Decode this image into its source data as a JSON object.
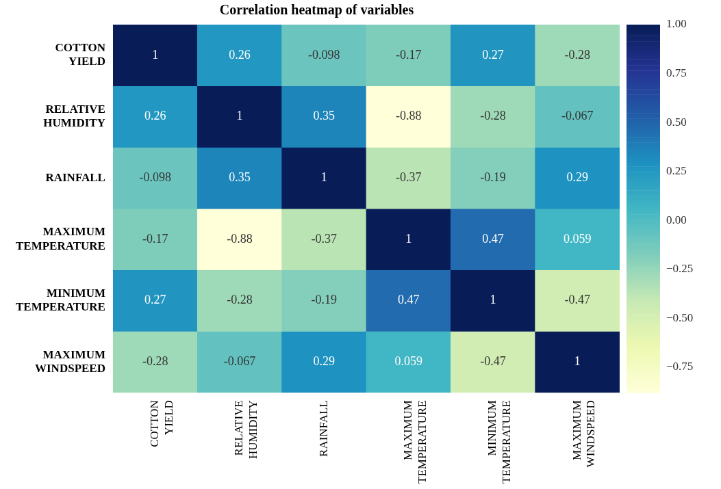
{
  "chart_data": {
    "type": "heatmap",
    "title": "Correlation heatmap of variables",
    "categories": [
      "COTTON YIELD",
      "RELATIVE HUMIDITY",
      "RAINFALL",
      "MAXIMUM TEMPERATURE",
      "MINIMUM TEMPERATURE",
      "MAXIMUM WINDSPEED"
    ],
    "y_categories": [
      "COTTON YIELD",
      "RELATIVE HUMIDITY",
      "RAINFALL",
      "MAXIMUM TEMPERATURE",
      "MINIMUM TEMPERATURE",
      "MAXIMUM WINDSPEED"
    ],
    "cells": [
      [
        1,
        0.26,
        -0.098,
        -0.17,
        0.27,
        -0.28
      ],
      [
        0.26,
        1,
        0.35,
        -0.88,
        -0.28,
        -0.067
      ],
      [
        -0.098,
        0.35,
        1,
        -0.37,
        -0.19,
        0.29
      ],
      [
        -0.17,
        -0.88,
        -0.37,
        1,
        0.47,
        0.059
      ],
      [
        0.27,
        -0.28,
        -0.19,
        0.47,
        1,
        -0.47
      ],
      [
        -0.28,
        -0.067,
        0.29,
        0.059,
        -0.47,
        1
      ]
    ],
    "data_labels": true,
    "clim": [
      -0.88,
      1
    ],
    "cticks": [
      {
        "value": -0.75,
        "label": "−0.75"
      },
      {
        "value": -0.5,
        "label": "−0.50"
      },
      {
        "value": -0.25,
        "label": "−0.25"
      },
      {
        "value": 0,
        "label": "0.00"
      },
      {
        "value": 0.25,
        "label": "0.25"
      },
      {
        "value": 0.5,
        "label": "0.50"
      },
      {
        "value": 0.75,
        "label": "0.75"
      },
      {
        "value": 1,
        "label": "1.00"
      }
    ]
  }
}
